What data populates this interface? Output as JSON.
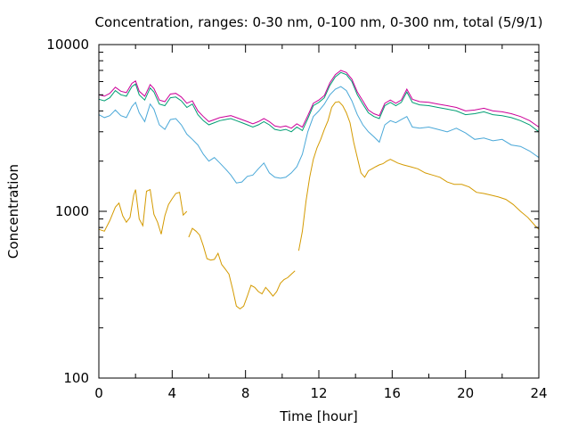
{
  "chart_data": {
    "type": "line",
    "title": "Concentration, ranges: 0-30 nm, 0-100 nm, 0-300 nm, total (5/9/1)",
    "xlabel": "Time [hour]",
    "ylabel": "Concentration",
    "xlim": [
      0,
      24
    ],
    "ylim": [
      100,
      10000
    ],
    "yscale": "log",
    "grid": false,
    "legend": "none",
    "xticks": [
      "0",
      "4",
      "8",
      "12",
      "16",
      "20",
      "24"
    ],
    "yticks": [
      "100",
      "1000",
      "10000"
    ],
    "series": [
      {
        "color": "#d49a00",
        "segments": [
          {
            "x": [
              0,
              0.3,
              0.6,
              0.9,
              1.1,
              1.3,
              1.5,
              1.7,
              1.9,
              2.0,
              2.2,
              2.4,
              2.6,
              2.8,
              3.0,
              3.2,
              3.4,
              3.6,
              3.8,
              4.0,
              4.2,
              4.4,
              4.6,
              4.8
            ],
            "y": [
              780,
              760,
              880,
              1060,
              1120,
              940,
              860,
              920,
              1250,
              1350,
              900,
              820,
              1320,
              1350,
              960,
              860,
              730,
              940,
              1100,
              1190,
              1280,
              1300,
              950,
              1000
            ]
          },
          {
            "x": [
              4.9,
              5.1,
              5.3,
              5.5,
              5.7,
              5.9,
              6.1,
              6.3,
              6.5,
              6.7,
              6.9,
              7.1,
              7.3,
              7.5,
              7.7,
              7.9,
              8.1,
              8.3,
              8.5,
              8.7,
              8.9,
              9.1,
              9.3,
              9.5,
              9.7,
              9.9,
              10.1,
              10.3,
              10.5,
              10.7
            ],
            "y": [
              700,
              790,
              760,
              720,
              620,
              520,
              510,
              515,
              560,
              480,
              450,
              420,
              340,
              270,
              260,
              270,
              310,
              360,
              350,
              330,
              320,
              350,
              330,
              310,
              330,
              370,
              390,
              400,
              420,
              440
            ]
          },
          {
            "x": [
              10.9,
              11.1,
              11.3,
              11.5,
              11.7,
              11.9,
              12.1,
              12.3,
              12.5,
              12.7,
              12.9,
              13.1,
              13.3,
              13.5,
              13.7,
              13.9,
              14.1,
              14.3,
              14.5,
              14.7,
              14.9,
              15.1,
              15.3,
              15.5,
              15.7,
              15.9,
              16.1,
              16.3,
              16.6,
              17.0,
              17.4,
              17.8,
              18.2,
              18.6,
              19.0,
              19.4,
              19.8,
              20.2,
              20.6,
              21.0,
              21.4,
              21.8,
              22.2,
              22.6,
              23.0,
              23.4,
              23.8,
              24.0
            ],
            "y": [
              580,
              760,
              1150,
              1600,
              2050,
              2400,
              2700,
              3100,
              3500,
              4200,
              4500,
              4550,
              4300,
              3900,
              3400,
              2600,
              2100,
              1700,
              1600,
              1750,
              1800,
              1850,
              1900,
              1930,
              2000,
              2050,
              2000,
              1950,
              1900,
              1850,
              1800,
              1700,
              1650,
              1600,
              1500,
              1450,
              1450,
              1400,
              1300,
              1280,
              1250,
              1220,
              1180,
              1100,
              1000,
              920,
              820,
              780
            ]
          }
        ]
      },
      {
        "color": "#4aa8d8",
        "segments": [
          {
            "x": [
              0,
              0.3,
              0.6,
              0.9,
              1.2,
              1.5,
              1.8,
              2.0,
              2.2,
              2.5,
              2.8,
              3.0,
              3.3,
              3.6,
              3.9,
              4.2,
              4.5,
              4.8,
              5.1,
              5.4,
              5.7,
              6.0,
              6.3,
              6.6,
              6.9,
              7.2,
              7.5,
              7.8,
              8.1,
              8.4,
              8.7,
              9.0,
              9.3,
              9.6,
              9.9,
              10.2,
              10.5,
              10.8,
              11.1,
              11.4,
              11.7,
              12.0,
              12.3,
              12.6,
              12.9,
              13.2,
              13.5,
              13.8,
              14.1,
              14.4,
              14.7,
              15.0,
              15.3,
              15.6,
              15.9,
              16.2,
              16.5,
              16.8,
              17.1,
              17.5,
              18.0,
              18.5,
              19.0,
              19.5,
              20.0,
              20.5,
              21.0,
              21.5,
              22.0,
              22.5,
              23.0,
              23.5,
              24.0
            ],
            "y": [
              3800,
              3650,
              3750,
              4050,
              3750,
              3650,
              4250,
              4500,
              3900,
              3450,
              4400,
              4100,
              3300,
              3100,
              3550,
              3600,
              3300,
              2900,
              2700,
              2500,
              2200,
              2000,
              2100,
              1950,
              1800,
              1650,
              1480,
              1500,
              1620,
              1650,
              1800,
              1950,
              1700,
              1600,
              1580,
              1600,
              1700,
              1850,
              2200,
              3000,
              3700,
              4000,
              4400,
              5000,
              5400,
              5600,
              5300,
              4600,
              3800,
              3300,
              3000,
              2800,
              2600,
              3300,
              3500,
              3400,
              3550,
              3700,
              3200,
              3150,
              3200,
              3100,
              3000,
              3150,
              2950,
              2700,
              2750,
              2650,
              2700,
              2500,
              2450,
              2300,
              2100
            ]
          }
        ]
      },
      {
        "color": "#009e73",
        "segments": [
          {
            "x": [
              0,
              0.3,
              0.6,
              0.9,
              1.2,
              1.5,
              1.8,
              2.0,
              2.2,
              2.5,
              2.8,
              3.0,
              3.3,
              3.6,
              3.9,
              4.2,
              4.5,
              4.8,
              5.1,
              5.4,
              5.7,
              6.0,
              6.3,
              6.6,
              6.9,
              7.2,
              7.5,
              7.8,
              8.1,
              8.4,
              8.7,
              9.0,
              9.3,
              9.6,
              9.9,
              10.2,
              10.5,
              10.8,
              11.1,
              11.4,
              11.7,
              12.0,
              12.3,
              12.6,
              12.9,
              13.2,
              13.5,
              13.8,
              14.1,
              14.4,
              14.7,
              15.0,
              15.3,
              15.6,
              15.9,
              16.2,
              16.5,
              16.8,
              17.1,
              17.5,
              18.0,
              18.5,
              19.0,
              19.5,
              20.0,
              20.5,
              21.0,
              21.5,
              22.0,
              22.5,
              23.0,
              23.5,
              24.0
            ],
            "y": [
              4700,
              4600,
              4800,
              5300,
              5000,
              4900,
              5600,
              5800,
              5000,
              4650,
              5500,
              5200,
              4400,
              4300,
              4800,
              4850,
              4600,
              4200,
              4400,
              3800,
              3500,
              3300,
              3400,
              3500,
              3550,
              3600,
              3500,
              3400,
              3300,
              3200,
              3300,
              3450,
              3300,
              3100,
              3050,
              3100,
              3000,
              3200,
              3050,
              3600,
              4300,
              4500,
              4800,
              5700,
              6400,
              6800,
              6600,
              6000,
              5000,
              4400,
              3900,
              3700,
              3600,
              4300,
              4500,
              4300,
              4500,
              5200,
              4500,
              4350,
              4300,
              4200,
              4100,
              4000,
              3800,
              3850,
              3950,
              3800,
              3750,
              3650,
              3500,
              3300,
              3000
            ]
          }
        ]
      },
      {
        "color": "#cc0099",
        "segments": [
          {
            "x": [
              0,
              0.3,
              0.6,
              0.9,
              1.2,
              1.5,
              1.8,
              2.0,
              2.2,
              2.5,
              2.8,
              3.0,
              3.3,
              3.6,
              3.9,
              4.2,
              4.5,
              4.8,
              5.1,
              5.4,
              5.7,
              6.0,
              6.3,
              6.6,
              6.9,
              7.2,
              7.5,
              7.8,
              8.1,
              8.4,
              8.7,
              9.0,
              9.3,
              9.6,
              9.9,
              10.2,
              10.5,
              10.8,
              11.1,
              11.4,
              11.7,
              12.0,
              12.3,
              12.6,
              12.9,
              13.2,
              13.5,
              13.8,
              14.1,
              14.4,
              14.7,
              15.0,
              15.3,
              15.6,
              15.9,
              16.2,
              16.5,
              16.8,
              17.1,
              17.5,
              18.0,
              18.5,
              19.0,
              19.5,
              20.0,
              20.5,
              21.0,
              21.5,
              22.0,
              22.5,
              23.0,
              23.5,
              24.0
            ],
            "y": [
              5000,
              4900,
              5100,
              5550,
              5250,
              5150,
              5850,
              6050,
              5250,
              4900,
              5750,
              5450,
              4650,
              4550,
              5050,
              5100,
              4850,
              4450,
              4600,
              4000,
              3700,
              3450,
              3550,
              3650,
              3700,
              3750,
              3650,
              3550,
              3450,
              3350,
              3450,
              3600,
              3450,
              3250,
              3200,
              3250,
              3150,
              3350,
              3200,
              3750,
              4450,
              4650,
              4950,
              5900,
              6600,
              7000,
              6800,
              6200,
              5200,
              4600,
              4050,
              3850,
              3750,
              4450,
              4650,
              4450,
              4650,
              5400,
              4700,
              4550,
              4500,
              4400,
              4300,
              4200,
              4000,
              4050,
              4150,
              4000,
              3950,
              3850,
              3700,
              3500,
              3200
            ]
          }
        ]
      }
    ]
  }
}
